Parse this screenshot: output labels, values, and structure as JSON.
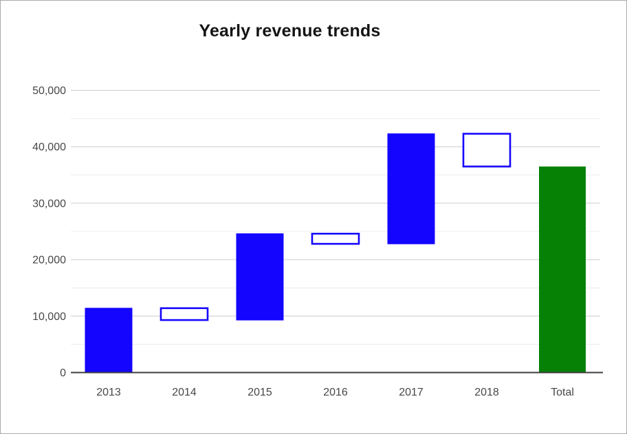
{
  "window": {
    "background": "#ffffff",
    "frame_border_color": "#a9a9a9"
  },
  "chart_data": {
    "type": "bar",
    "variant": "waterfall",
    "title": "Yearly revenue trends",
    "legend": "none",
    "grid": true,
    "categories": [
      "2013",
      "2014",
      "2015",
      "2016",
      "2017",
      "2018",
      "Total"
    ],
    "bars": [
      {
        "category": "2013",
        "start": 0,
        "end": 11400,
        "change": 11400,
        "role": "increase"
      },
      {
        "category": "2014",
        "start": 11400,
        "end": 9300,
        "change": -2100,
        "role": "decrease"
      },
      {
        "category": "2015",
        "start": 9300,
        "end": 24600,
        "change": 15300,
        "role": "increase"
      },
      {
        "category": "2016",
        "start": 24600,
        "end": 22800,
        "change": -1800,
        "role": "decrease"
      },
      {
        "category": "2017",
        "start": 22800,
        "end": 42300,
        "change": 19500,
        "role": "increase"
      },
      {
        "category": "2018",
        "start": 42300,
        "end": 36500,
        "change": -5800,
        "role": "decrease"
      },
      {
        "category": "Total",
        "start": 0,
        "end": 36500,
        "change": 36500,
        "role": "total"
      }
    ],
    "y_axis": {
      "min": 0,
      "max": 50000,
      "major_step": 10000,
      "minor_step": 5000,
      "tick_labels": [
        "0",
        "10,000",
        "20,000",
        "30,000",
        "40,000",
        "50,000"
      ]
    },
    "styles": {
      "increase_fill": "#1405ff",
      "decrease_fill": "#ffffff",
      "decrease_border": "#1405ff",
      "total_fill": "#068106",
      "major_gridline": "#cccccc",
      "minor_gridline": "#ececec",
      "baseline": "#3d3d3d",
      "axis_label_color": "#474747",
      "title_color": "#141414"
    }
  }
}
